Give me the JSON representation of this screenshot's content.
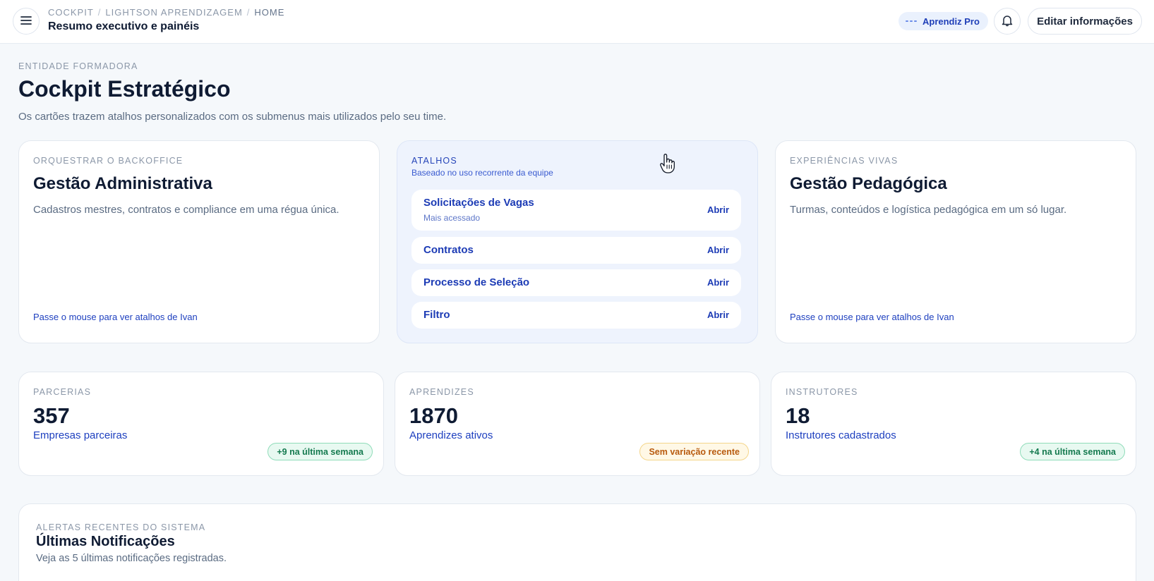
{
  "header": {
    "breadcrumb": [
      "COCKPIT",
      "LIGHTSON APRENDIZAGEM",
      "HOME"
    ],
    "title": "Resumo executivo e painéis",
    "plan_badge": "Aprendiz Pro",
    "edit_button": "Editar informações",
    "icons": {
      "menu": "hamburger-menu-icon",
      "notifications": "bell-icon",
      "plan": "logo-dots-icon"
    }
  },
  "page": {
    "eyebrow": "ENTIDADE FORMADORA",
    "title": "Cockpit Estratégico",
    "subtitle": "Os cartões trazem atalhos personalizados com os submenus mais utilizados pelo seu time."
  },
  "cards": {
    "admin": {
      "eyebrow": "ORQUESTRAR O BACKOFFICE",
      "title": "Gestão Administrativa",
      "description": "Cadastros mestres, contratos e compliance em uma régua única.",
      "hover_hint": "Passe o mouse para ver atalhos de Ivan"
    },
    "shortcuts": {
      "eyebrow": "ATALHOS",
      "subtitle": "Baseado no uso recorrente da equipe",
      "items": [
        {
          "label": "Solicitações de Vagas",
          "meta": "Mais acessado",
          "action": "Abrir"
        },
        {
          "label": "Contratos",
          "action": "Abrir"
        },
        {
          "label": "Processo de Seleção",
          "action": "Abrir"
        },
        {
          "label": "Filtro",
          "action": "Abrir"
        }
      ]
    },
    "pedagogic": {
      "eyebrow": "EXPERIÊNCIAS VIVAS",
      "title": "Gestão Pedagógica",
      "description": "Turmas, conteúdos e logística pedagógica em um só lugar.",
      "hover_hint": "Passe o mouse para ver atalhos de Ivan"
    }
  },
  "stats": [
    {
      "eyebrow": "PARCERIAS",
      "value": "357",
      "label": "Empresas parceiras",
      "badge": "+9 na última semana",
      "badge_color": "#147a4f"
    },
    {
      "eyebrow": "APRENDIZES",
      "value": "1870",
      "label": "Aprendizes ativos",
      "badge": "Sem variação recente",
      "badge_color": "#b85a0e"
    },
    {
      "eyebrow": "INSTRUTORES",
      "value": "18",
      "label": "Instrutores cadastrados",
      "badge": "+4 na última semana",
      "badge_color": "#147a4f"
    }
  ],
  "notifications": {
    "eyebrow": "ALERTAS RECENTES DO SISTEMA",
    "title": "Últimas Notificações",
    "subtitle": "Veja as 5 últimas notificações registradas."
  },
  "colors": {
    "accent": "#1d3fbf",
    "background": "#f5f8fb",
    "shortcuts_bg": "#eef3fd",
    "success": "#147a4f",
    "warning": "#b85a0e"
  }
}
